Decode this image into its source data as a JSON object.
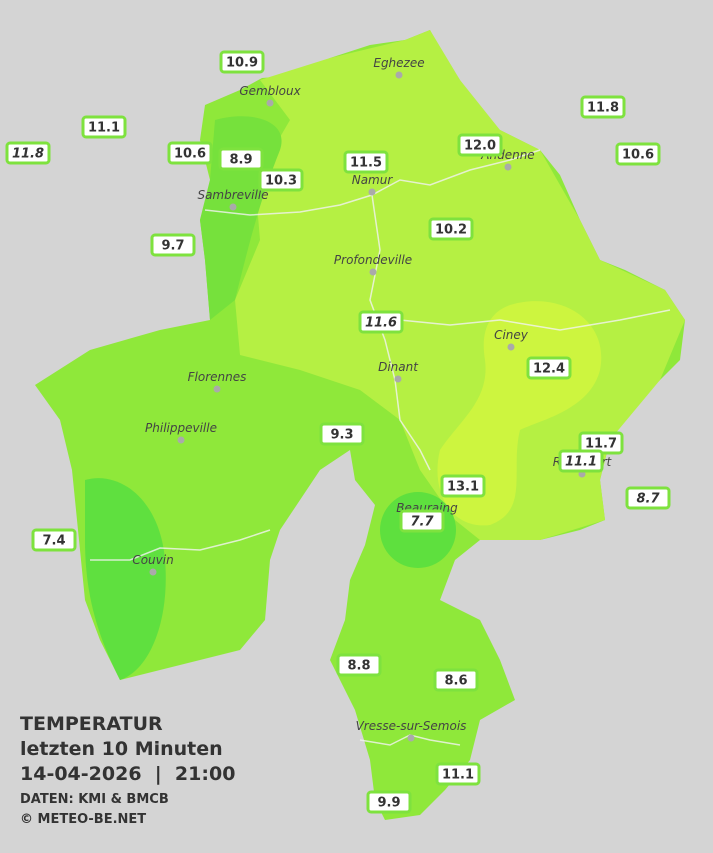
{
  "title": {
    "lines": [
      "TEMPERATUR",
      "letzten 10 Minuten",
      "14-04-2026  |  21:00"
    ],
    "source": "DATEN: KMI & BMCB",
    "copyright": "© METEO-BE.NET"
  },
  "cities": [
    "Eghezee",
    "Gembloux",
    "Andenne",
    "Namur",
    "Sambreville",
    "Profondeville",
    "Ciney",
    "Florennes",
    "Dinant",
    "Philippeville",
    "Rochefort",
    "Beauraing",
    "Couvin",
    "Vresse-sur-Semois"
  ],
  "stations": [
    "10.9",
    "11.1",
    "11.8",
    "10.6",
    "8.9",
    "10.3",
    "11.5",
    "12.0",
    "11.8",
    "10.6",
    "9.7",
    "10.2",
    "11.6",
    "12.4",
    "9.3",
    "11.7",
    "11.1",
    "13.1",
    "8.7",
    "7.7",
    "7.4",
    "8.8",
    "8.6",
    "11.1",
    "9.9"
  ]
}
